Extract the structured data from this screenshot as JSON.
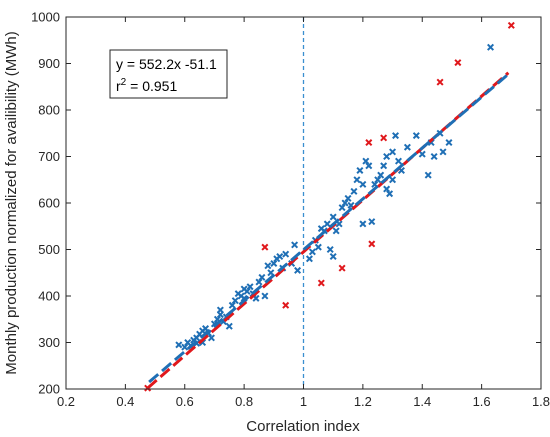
{
  "chart_data": {
    "type": "scatter",
    "title": "",
    "xlabel": "Correlation index",
    "ylabel": "Monthly production normalized for availibility (MWh)",
    "xlim": [
      0.2,
      1.8
    ],
    "ylim": [
      200,
      1000
    ],
    "xticks": [
      "0.2",
      "0.4",
      "0.6",
      "0.8",
      "1",
      "1.2",
      "1.4",
      "1.6",
      "1.8"
    ],
    "yticks": [
      "200",
      "300",
      "400",
      "500",
      "600",
      "700",
      "800",
      "900",
      "1000"
    ],
    "grid": false,
    "reference_line": {
      "x": 1.0,
      "color": "#3a8fd0",
      "style": "dashed"
    },
    "annotation": {
      "line1": "y = 552.2x -51.1",
      "r2_prefix": "r",
      "r2_sup": "2",
      "r2_suffix": " = 0.951"
    },
    "colors": {
      "blue": "#1f6fb5",
      "red": "#e0181c"
    },
    "fit_lines": [
      {
        "color": "#e0181c",
        "x": [
          0.475,
          1.69
        ],
        "y": [
          202,
          880
        ]
      },
      {
        "color": "#1f6fb5",
        "x": [
          0.48,
          1.69
        ],
        "y": [
          215,
          877
        ]
      }
    ],
    "series": [
      {
        "color": "#1f6fb5",
        "points": [
          [
            0.58,
            295
          ],
          [
            0.6,
            290
          ],
          [
            0.61,
            300
          ],
          [
            0.62,
            293
          ],
          [
            0.63,
            305
          ],
          [
            0.64,
            298
          ],
          [
            0.64,
            310
          ],
          [
            0.65,
            318
          ],
          [
            0.66,
            300
          ],
          [
            0.66,
            325
          ],
          [
            0.67,
            330
          ],
          [
            0.68,
            320
          ],
          [
            0.69,
            310
          ],
          [
            0.7,
            340
          ],
          [
            0.71,
            350
          ],
          [
            0.72,
            360
          ],
          [
            0.73,
            345
          ],
          [
            0.72,
            370
          ],
          [
            0.74,
            355
          ],
          [
            0.75,
            335
          ],
          [
            0.76,
            380
          ],
          [
            0.77,
            390
          ],
          [
            0.78,
            405
          ],
          [
            0.79,
            400
          ],
          [
            0.8,
            395
          ],
          [
            0.8,
            415
          ],
          [
            0.81,
            410
          ],
          [
            0.82,
            420
          ],
          [
            0.83,
            405
          ],
          [
            0.84,
            395
          ],
          [
            0.85,
            430
          ],
          [
            0.86,
            440
          ],
          [
            0.87,
            400
          ],
          [
            0.88,
            465
          ],
          [
            0.89,
            450
          ],
          [
            0.9,
            470
          ],
          [
            0.91,
            480
          ],
          [
            0.92,
            485
          ],
          [
            0.93,
            460
          ],
          [
            0.94,
            490
          ],
          [
            0.96,
            470
          ],
          [
            0.97,
            510
          ],
          [
            0.98,
            455
          ],
          [
            1.02,
            480
          ],
          [
            1.03,
            495
          ],
          [
            1.04,
            520
          ],
          [
            1.05,
            505
          ],
          [
            1.06,
            545
          ],
          [
            1.07,
            540
          ],
          [
            1.08,
            555
          ],
          [
            1.09,
            500
          ],
          [
            1.1,
            570
          ],
          [
            1.1,
            485
          ],
          [
            1.11,
            540
          ],
          [
            1.12,
            555
          ],
          [
            1.13,
            590
          ],
          [
            1.14,
            600
          ],
          [
            1.15,
            610
          ],
          [
            1.16,
            595
          ],
          [
            1.17,
            625
          ],
          [
            1.18,
            650
          ],
          [
            1.19,
            670
          ],
          [
            1.2,
            640
          ],
          [
            1.2,
            555
          ],
          [
            1.21,
            690
          ],
          [
            1.22,
            680
          ],
          [
            1.23,
            560
          ],
          [
            1.24,
            640
          ],
          [
            1.25,
            650
          ],
          [
            1.26,
            660
          ],
          [
            1.27,
            680
          ],
          [
            1.28,
            630
          ],
          [
            1.28,
            700
          ],
          [
            1.29,
            620
          ],
          [
            1.3,
            710
          ],
          [
            1.3,
            650
          ],
          [
            1.31,
            745
          ],
          [
            1.32,
            690
          ],
          [
            1.33,
            670
          ],
          [
            1.35,
            720
          ],
          [
            1.38,
            745
          ],
          [
            1.4,
            705
          ],
          [
            1.42,
            660
          ],
          [
            1.43,
            730
          ],
          [
            1.44,
            700
          ],
          [
            1.46,
            750
          ],
          [
            1.47,
            710
          ],
          [
            1.49,
            730
          ],
          [
            1.63,
            935
          ]
        ]
      },
      {
        "color": "#e0181c",
        "points": [
          [
            0.475,
            202
          ],
          [
            0.87,
            505
          ],
          [
            0.94,
            380
          ],
          [
            1.06,
            428
          ],
          [
            1.13,
            460
          ],
          [
            1.22,
            730
          ],
          [
            1.23,
            512
          ],
          [
            1.27,
            740
          ],
          [
            1.46,
            860
          ],
          [
            1.52,
            902
          ],
          [
            1.7,
            982
          ]
        ]
      }
    ]
  }
}
